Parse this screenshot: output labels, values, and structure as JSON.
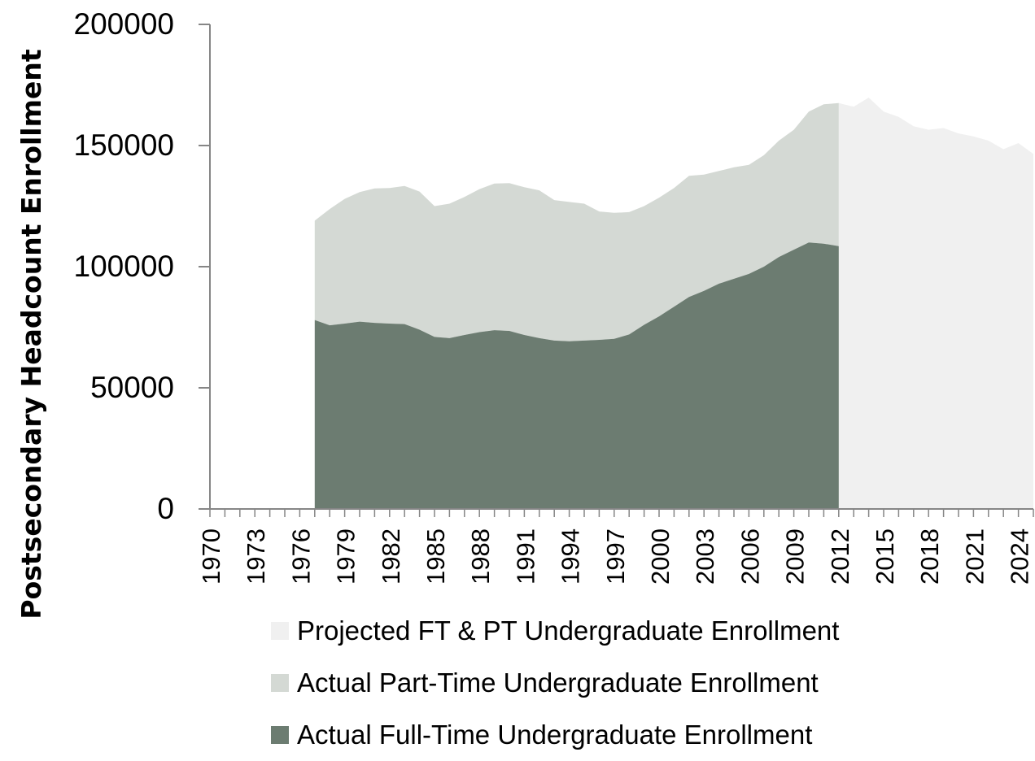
{
  "chart_data": {
    "type": "area",
    "ylabel": "Postsecondary Headcount Enrollment",
    "xlabel": "",
    "title": "",
    "ylim": [
      0,
      200000
    ],
    "yticks": [
      "0",
      "50000",
      "100000",
      "150000",
      "200000"
    ],
    "x": [
      1970,
      1971,
      1972,
      1973,
      1974,
      1975,
      1976,
      1977,
      1978,
      1979,
      1980,
      1981,
      1982,
      1983,
      1984,
      1985,
      1986,
      1987,
      1988,
      1989,
      1990,
      1991,
      1992,
      1993,
      1994,
      1995,
      1996,
      1997,
      1998,
      1999,
      2000,
      2001,
      2002,
      2003,
      2004,
      2005,
      2006,
      2007,
      2008,
      2009,
      2010,
      2011,
      2012,
      2013,
      2014,
      2015,
      2016,
      2017,
      2018,
      2019,
      2020,
      2021,
      2022,
      2023,
      2024,
      2025
    ],
    "xtick_labels": [
      "1970",
      "1973",
      "1976",
      "1979",
      "1982",
      "1985",
      "1988",
      "1991",
      "1994",
      "1997",
      "2000",
      "2003",
      "2006",
      "2009",
      "2012",
      "2015",
      "2018",
      "2021",
      "2024"
    ],
    "grid": false,
    "legend_position": "bottom",
    "series": [
      {
        "name": "Projected FT & PT Undergraduate Enrollment",
        "color": "#f0f0f0",
        "stack": "projected",
        "values": [
          null,
          null,
          null,
          null,
          null,
          null,
          null,
          null,
          null,
          null,
          null,
          null,
          null,
          null,
          null,
          null,
          null,
          null,
          null,
          null,
          null,
          null,
          null,
          null,
          null,
          null,
          null,
          null,
          null,
          null,
          null,
          null,
          null,
          null,
          null,
          null,
          null,
          null,
          null,
          null,
          null,
          null,
          167500,
          166000,
          169800,
          164000,
          161800,
          158000,
          156500,
          157200,
          155000,
          153800,
          152000,
          148500,
          151000,
          146500
        ]
      },
      {
        "name": "Actual Part-Time Undergraduate Enrollment",
        "color": "#d4d9d4",
        "stack": "actual",
        "values": [
          null,
          null,
          null,
          null,
          null,
          null,
          null,
          41000,
          48000,
          51500,
          53500,
          55500,
          56000,
          57000,
          57000,
          54000,
          55500,
          57000,
          59000,
          60500,
          61000,
          61000,
          61000,
          58000,
          57500,
          56500,
          53000,
          52000,
          50500,
          49000,
          49000,
          49000,
          50000,
          48000,
          46500,
          46000,
          45000,
          46000,
          48000,
          49500,
          54000,
          57500,
          59000,
          null,
          null,
          null,
          null,
          null,
          null,
          null,
          null,
          null,
          null,
          null,
          null,
          null
        ]
      },
      {
        "name": "Actual Full-Time Undergraduate Enrollment",
        "color": "#6c7c71",
        "stack": "actual",
        "values": [
          null,
          null,
          null,
          null,
          null,
          null,
          null,
          78000,
          75800,
          76500,
          77300,
          76800,
          76500,
          76300,
          74000,
          71000,
          70500,
          71800,
          73000,
          73800,
          73500,
          71800,
          70500,
          69500,
          69200,
          69500,
          69800,
          70200,
          72000,
          76000,
          79500,
          83500,
          87500,
          90000,
          93000,
          95000,
          97000,
          100000,
          104000,
          107000,
          110000,
          109500,
          108500,
          null,
          null,
          null,
          null,
          null,
          null,
          null,
          null,
          null,
          null,
          null,
          null,
          null
        ]
      }
    ]
  }
}
